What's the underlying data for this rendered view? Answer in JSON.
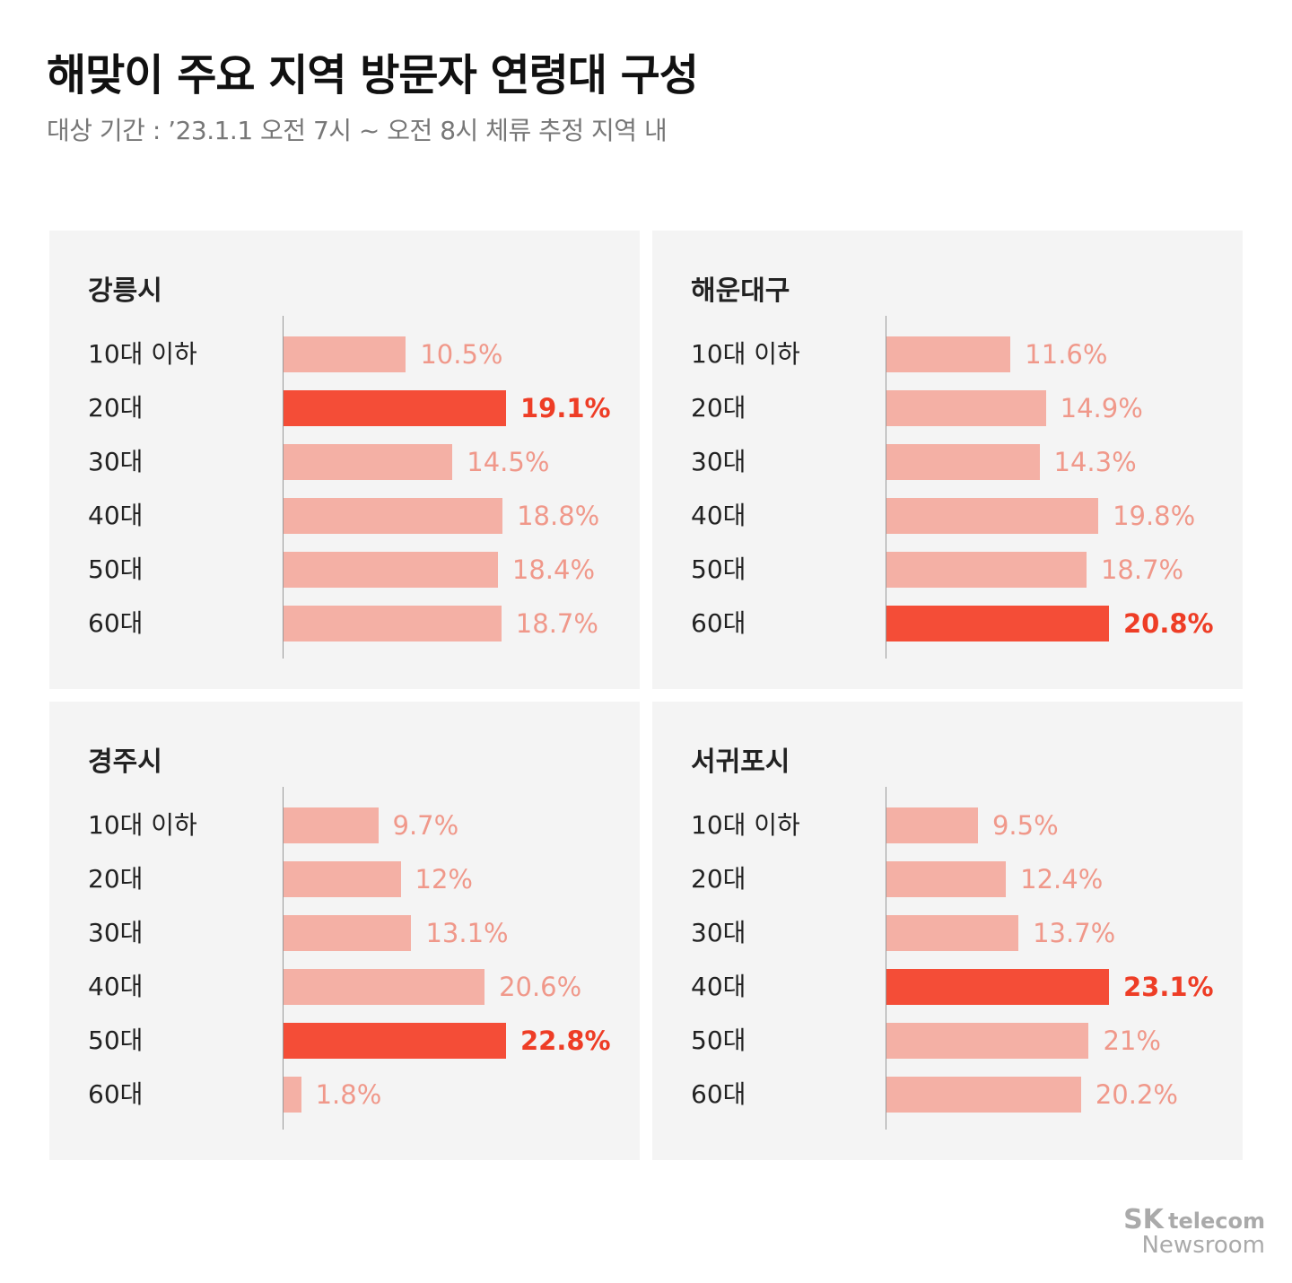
{
  "title": "해맞이 주요 지역 방문자 연령대 구성",
  "subtitle": "대상 기간 : ’23.1.1 오전 7시 ~ 오전 8시 체류 추정 지역 내",
  "colors": {
    "bar": "#f4b0a5",
    "highlight": "#f44d37",
    "label": "#f0988a",
    "highlight_label": "#ee3d26"
  },
  "logo": {
    "brand": "SK",
    "brand2": "telecom",
    "sub": "Newsroom"
  },
  "chart_data": [
    {
      "type": "bar",
      "orientation": "horizontal",
      "title": "강릉시",
      "categories": [
        "10대 이하",
        "20대",
        "30대",
        "40대",
        "50대",
        "60대"
      ],
      "values": [
        10.5,
        19.1,
        14.5,
        18.8,
        18.4,
        18.7
      ],
      "labels": [
        "10.5%",
        "19.1%",
        "14.5%",
        "18.8%",
        "18.4%",
        "18.7%"
      ],
      "highlight": 1
    },
    {
      "type": "bar",
      "orientation": "horizontal",
      "title": "해운대구",
      "categories": [
        "10대 이하",
        "20대",
        "30대",
        "40대",
        "50대",
        "60대"
      ],
      "values": [
        11.6,
        14.9,
        14.3,
        19.8,
        18.7,
        20.8
      ],
      "labels": [
        "11.6%",
        "14.9%",
        "14.3%",
        "19.8%",
        "18.7%",
        "20.8%"
      ],
      "highlight": 5
    },
    {
      "type": "bar",
      "orientation": "horizontal",
      "title": "경주시",
      "categories": [
        "10대 이하",
        "20대",
        "30대",
        "40대",
        "50대",
        "60대"
      ],
      "values": [
        9.7,
        12,
        13.1,
        20.6,
        22.8,
        1.8
      ],
      "labels": [
        "9.7%",
        "12%",
        "13.1%",
        "20.6%",
        "22.8%",
        "1.8%"
      ],
      "highlight": 4
    },
    {
      "type": "bar",
      "orientation": "horizontal",
      "title": "서귀포시",
      "categories": [
        "10대 이하",
        "20대",
        "30대",
        "40대",
        "50대",
        "60대"
      ],
      "values": [
        9.5,
        12.4,
        13.7,
        23.1,
        21,
        20.2
      ],
      "labels": [
        "9.5%",
        "12.4%",
        "13.7%",
        "23.1%",
        "21%",
        "20.2%"
      ],
      "highlight": 3
    }
  ]
}
